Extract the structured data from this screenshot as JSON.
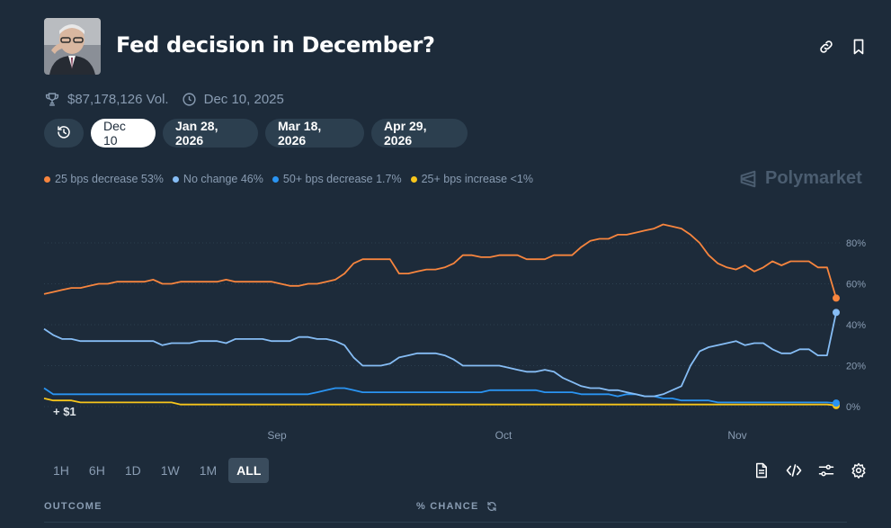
{
  "market": {
    "title": "Fed decision in December?",
    "volume": "$87,178,126 Vol.",
    "end_date": "Dec 10, 2025"
  },
  "date_tabs": [
    {
      "label": "Dec 10",
      "active": true
    },
    {
      "label": "Jan 28, 2026",
      "active": false
    },
    {
      "label": "Mar 18, 2026",
      "active": false
    },
    {
      "label": "Apr 29, 2026",
      "active": false
    }
  ],
  "legend": [
    {
      "label": "25 bps decrease 53%",
      "color": "#f7853e"
    },
    {
      "label": "No change 46%",
      "color": "#86bdf5"
    },
    {
      "label": "50+ bps decrease 1.7%",
      "color": "#2a94f2"
    },
    {
      "label": "25+ bps increase <1%",
      "color": "#f8c61b"
    }
  ],
  "brand": "Polymarket",
  "annotation": "+ $1",
  "chart_data": {
    "type": "line",
    "x_ticks": [
      "Sep",
      "Oct",
      "Nov"
    ],
    "y_ticks": [
      "80%",
      "60%",
      "40%",
      "20%",
      "0%"
    ],
    "ylim": [
      0,
      100
    ],
    "grid": true,
    "series": [
      {
        "name": "25 bps decrease",
        "color": "#f7853e",
        "values": [
          55,
          56,
          57,
          58,
          58,
          59,
          60,
          60,
          61,
          61,
          61,
          61,
          62,
          60,
          60,
          61,
          61,
          61,
          61,
          61,
          62,
          61,
          61,
          61,
          61,
          61,
          60,
          59,
          59,
          60,
          60,
          61,
          62,
          65,
          70,
          72,
          72,
          72,
          72,
          65,
          65,
          66,
          67,
          67,
          68,
          70,
          74,
          74,
          73,
          73,
          74,
          74,
          74,
          72,
          72,
          72,
          74,
          74,
          74,
          78,
          81,
          82,
          82,
          84,
          84,
          85,
          86,
          87,
          89,
          88,
          87,
          84,
          80,
          74,
          70,
          68,
          67,
          69,
          66,
          68,
          71,
          69,
          71,
          71,
          71,
          68,
          68,
          53
        ]
      },
      {
        "name": "No change",
        "color": "#86bdf5",
        "values": [
          38,
          35,
          33,
          33,
          32,
          32,
          32,
          32,
          32,
          32,
          32,
          32,
          32,
          30,
          31,
          31,
          31,
          32,
          32,
          32,
          31,
          33,
          33,
          33,
          33,
          32,
          32,
          32,
          34,
          34,
          33,
          33,
          32,
          30,
          24,
          20,
          20,
          20,
          21,
          24,
          25,
          26,
          26,
          26,
          25,
          23,
          20,
          20,
          20,
          20,
          20,
          19,
          18,
          17,
          17,
          18,
          17,
          14,
          12,
          10,
          9,
          9,
          8,
          8,
          7,
          6,
          5,
          5,
          6,
          8,
          10,
          20,
          27,
          29,
          30,
          31,
          32,
          30,
          31,
          31,
          28,
          26,
          26,
          28,
          28,
          25,
          25,
          46
        ]
      },
      {
        "name": "50+ bps decrease",
        "color": "#2a94f2",
        "values": [
          9,
          6,
          6,
          6,
          6,
          6,
          6,
          6,
          6,
          6,
          6,
          6,
          6,
          6,
          6,
          6,
          6,
          6,
          6,
          6,
          6,
          6,
          6,
          6,
          6,
          6,
          6,
          6,
          6,
          6,
          7,
          8,
          9,
          9,
          8,
          7,
          7,
          7,
          7,
          7,
          7,
          7,
          7,
          7,
          7,
          7,
          7,
          7,
          7,
          8,
          8,
          8,
          8,
          8,
          8,
          7,
          7,
          7,
          7,
          6,
          6,
          6,
          6,
          5,
          6,
          6,
          5,
          5,
          4,
          4,
          3,
          3,
          3,
          3,
          2,
          2,
          2,
          2,
          2,
          2,
          2,
          2,
          2,
          2,
          2,
          2,
          2,
          1.7
        ]
      },
      {
        "name": "25+ bps increase",
        "color": "#f8c61b",
        "values": [
          4,
          3,
          3,
          3,
          2,
          2,
          2,
          2,
          2,
          2,
          2,
          2,
          2,
          2,
          2,
          1,
          1,
          1,
          1,
          1,
          1,
          1,
          1,
          1,
          1,
          1,
          1,
          1,
          1,
          1,
          1,
          1,
          1,
          1,
          1,
          1,
          1,
          1,
          1,
          1,
          1,
          1,
          1,
          1,
          1,
          1,
          1,
          1,
          1,
          1,
          1,
          1,
          1,
          1,
          1,
          1,
          1,
          1,
          1,
          1,
          1,
          1,
          1,
          1,
          1,
          1,
          1,
          1,
          1,
          1,
          1,
          1,
          1,
          1,
          1,
          1,
          1,
          1,
          1,
          1,
          1,
          1,
          1,
          1,
          1,
          1,
          1,
          0.5
        ]
      }
    ]
  },
  "range_tabs": [
    {
      "label": "1H",
      "active": false
    },
    {
      "label": "6H",
      "active": false
    },
    {
      "label": "1D",
      "active": false
    },
    {
      "label": "1W",
      "active": false
    },
    {
      "label": "1M",
      "active": false
    },
    {
      "label": "ALL",
      "active": true
    }
  ],
  "table": {
    "outcome_header": "OUTCOME",
    "chance_header": "% CHANCE"
  },
  "icons": {
    "link": "link-icon",
    "bookmark": "bookmark-icon",
    "trophy": "trophy-icon",
    "clock": "clock-icon",
    "history": "history-icon",
    "document": "document-icon",
    "embed": "code-icon",
    "filter": "sliders-icon",
    "settings": "gear-icon",
    "refresh": "refresh-icon"
  }
}
